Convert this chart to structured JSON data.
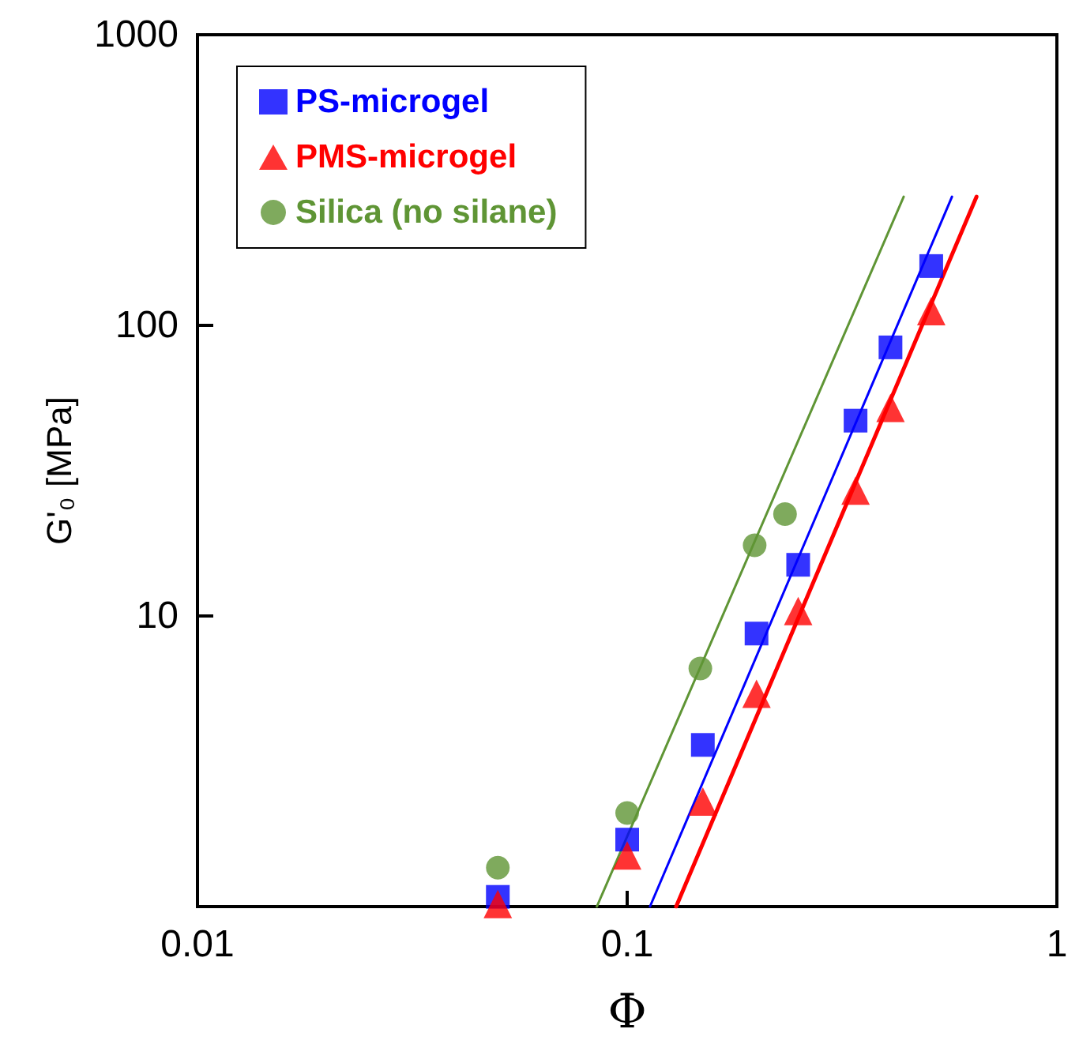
{
  "chart_data": {
    "type": "scatter",
    "xlabel": "Φ",
    "ylabel": "G'₀ [MPa]",
    "log": "xy",
    "grid": false,
    "legend": "top left",
    "xlim": [
      0.01,
      1
    ],
    "xticks": [
      0.01,
      0.1,
      1
    ],
    "ylim": [
      1,
      1000
    ],
    "yticks": [
      {
        "value": 1,
        "label": null
      },
      10,
      100,
      1000
    ],
    "series": [
      {
        "name": "PS-microgel",
        "color": "#0000ff",
        "marker": "square",
        "x": [
          0.05,
          0.1,
          0.15,
          0.2,
          0.25,
          0.34,
          0.41,
          0.51
        ],
        "values": [
          1.08,
          1.7,
          3.6,
          8.7,
          15,
          47,
          84,
          160
        ]
      },
      {
        "name": "PMS-microgel",
        "color": "#ff0000",
        "marker": "triangle",
        "x": [
          0.05,
          0.1,
          0.15,
          0.2,
          0.25,
          0.34,
          0.41,
          0.51
        ],
        "values": [
          1.02,
          1.5,
          2.3,
          5.4,
          10.4,
          27,
          52,
          112
        ]
      },
      {
        "name": "Silica (no silane)",
        "color": "#5f9535",
        "marker": "circle",
        "x": [
          0.05,
          0.1,
          0.148,
          0.198,
          0.233
        ],
        "values": [
          1.36,
          2.1,
          6.6,
          17.5,
          22.4
        ]
      },
      {
        "type": "line",
        "color": "#5f9535",
        "marker": "none",
        "x": [
          0.085,
          0.44
        ],
        "values": [
          1,
          277
        ]
      },
      {
        "type": "line",
        "color": "#0000ff",
        "marker": "none",
        "x": [
          0.113,
          0.57
        ],
        "values": [
          1,
          277
        ]
      },
      {
        "type": "line",
        "color": "#ff0000",
        "marker": "none",
        "x": [
          0.13,
          0.65
        ],
        "values": [
          1,
          277
        ]
      }
    ]
  }
}
